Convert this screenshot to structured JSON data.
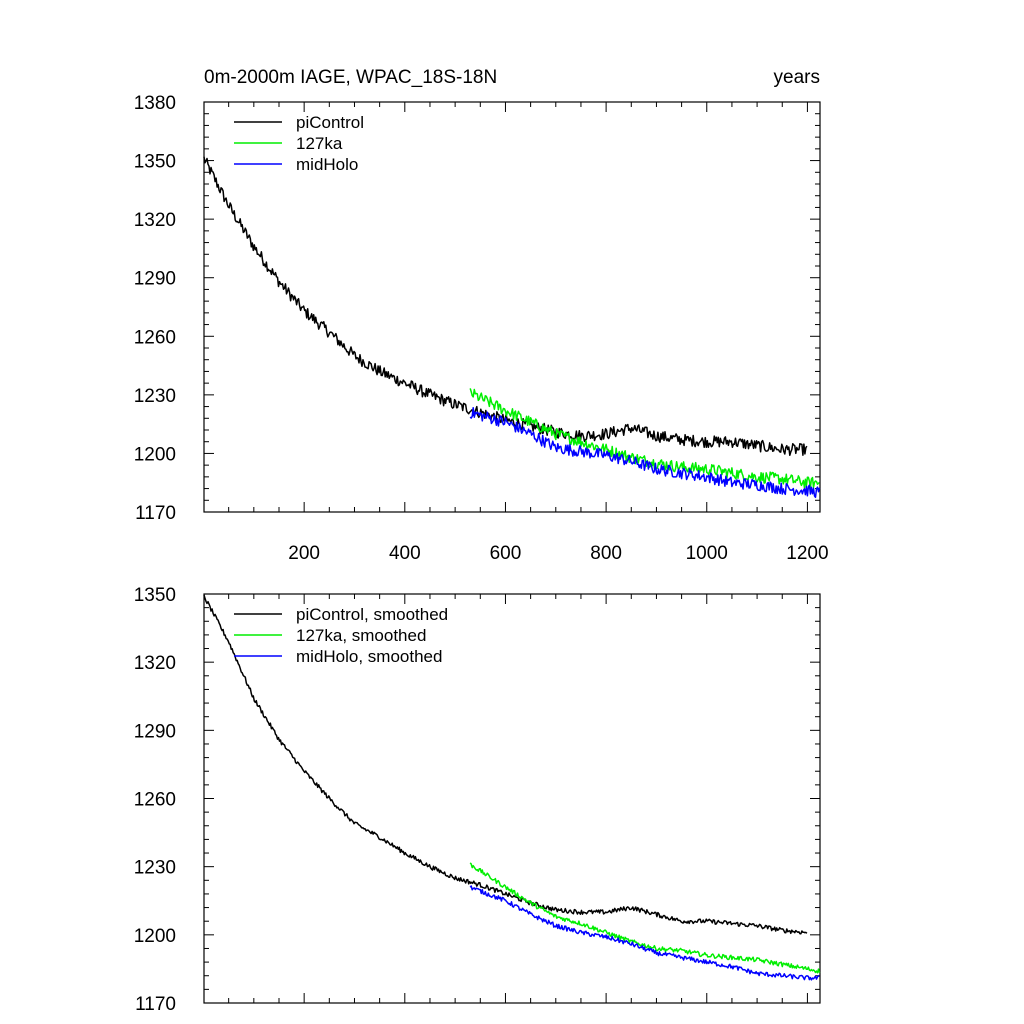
{
  "chart_data": [
    {
      "type": "line",
      "title": "0m-2000m IAGE, WPAC_18S-18N",
      "units": "years",
      "xlim": [
        1,
        1225
      ],
      "ylim": [
        1170,
        1380
      ],
      "x_ticks": [
        200,
        400,
        600,
        800,
        1000,
        1200
      ],
      "x_tick_labels": [
        "200",
        "400",
        "600",
        "800",
        "1000",
        "1200"
      ],
      "y_ticks": [
        1170,
        1200,
        1230,
        1260,
        1290,
        1320,
        1350,
        1380
      ],
      "y_tick_labels": [
        "1170",
        "1200",
        "1230",
        "1260",
        "1290",
        "1320",
        "1350",
        "1380"
      ],
      "legend_position": "top-left",
      "noise": 3.0,
      "series": [
        {
          "name": "piControl",
          "color": "#000000",
          "x": [
            1,
            50,
            100,
            150,
            200,
            250,
            300,
            350,
            400,
            450,
            500,
            550,
            600,
            650,
            700,
            750,
            800,
            850,
            900,
            950,
            1000,
            1050,
            1100,
            1150,
            1200
          ],
          "values": [
            1351,
            1327,
            1306,
            1288,
            1273,
            1262,
            1250,
            1242,
            1236,
            1230,
            1225,
            1221,
            1217,
            1214,
            1211,
            1209,
            1210,
            1213,
            1209,
            1207,
            1206,
            1206,
            1204,
            1202,
            1202
          ]
        },
        {
          "name": "127ka",
          "color": "#00ee00",
          "x": [
            530,
            600,
            650,
            700,
            750,
            800,
            850,
            900,
            950,
            1000,
            1050,
            1100,
            1150,
            1200,
            1225
          ],
          "values": [
            1231,
            1222,
            1216,
            1210,
            1206,
            1202,
            1198,
            1195,
            1193,
            1192,
            1190,
            1188,
            1187,
            1185,
            1185
          ]
        },
        {
          "name": "midHolo",
          "color": "#0000ff",
          "x": [
            530,
            600,
            650,
            700,
            750,
            800,
            850,
            900,
            950,
            1000,
            1050,
            1100,
            1150,
            1200,
            1225
          ],
          "values": [
            1221,
            1216,
            1210,
            1203,
            1201,
            1199,
            1196,
            1192,
            1190,
            1188,
            1185,
            1184,
            1182,
            1181,
            1180
          ]
        }
      ]
    },
    {
      "type": "line",
      "title": "",
      "xlim": [
        1,
        1225
      ],
      "ylim": [
        1170,
        1350
      ],
      "x_ticks": [
        200,
        400,
        600,
        800,
        1000,
        1200
      ],
      "x_tick_labels": [],
      "y_ticks": [
        1170,
        1200,
        1230,
        1260,
        1290,
        1320,
        1350
      ],
      "y_tick_labels": [
        "1170",
        "1200",
        "1230",
        "1260",
        "1290",
        "1320",
        "1350"
      ],
      "legend_position": "top-left",
      "noise": 1.0,
      "series": [
        {
          "name": "piControl, smoothed",
          "color": "#000000",
          "x": [
            1,
            50,
            100,
            150,
            200,
            250,
            300,
            350,
            400,
            450,
            500,
            550,
            600,
            650,
            700,
            750,
            800,
            850,
            900,
            950,
            1000,
            1050,
            1100,
            1150,
            1200
          ],
          "values": [
            1349,
            1329,
            1304,
            1286,
            1272,
            1260,
            1249,
            1243,
            1236,
            1230,
            1225,
            1222,
            1218,
            1214,
            1211,
            1210,
            1210,
            1212,
            1209,
            1206,
            1206,
            1205,
            1204,
            1202,
            1201
          ]
        },
        {
          "name": "127ka, smoothed",
          "color": "#00ee00",
          "x": [
            530,
            600,
            650,
            700,
            750,
            800,
            850,
            900,
            950,
            1000,
            1050,
            1100,
            1150,
            1200,
            1225
          ],
          "values": [
            1231,
            1221,
            1214,
            1208,
            1205,
            1201,
            1197,
            1194,
            1193,
            1191,
            1190,
            1189,
            1187,
            1185,
            1184
          ]
        },
        {
          "name": "midHolo, smoothed",
          "color": "#0000ff",
          "x": [
            530,
            600,
            650,
            700,
            750,
            800,
            850,
            900,
            950,
            1000,
            1050,
            1100,
            1150,
            1200,
            1225
          ],
          "values": [
            1221,
            1215,
            1209,
            1204,
            1201,
            1199,
            1196,
            1192,
            1190,
            1188,
            1186,
            1183,
            1182,
            1181,
            1181
          ]
        }
      ]
    }
  ]
}
